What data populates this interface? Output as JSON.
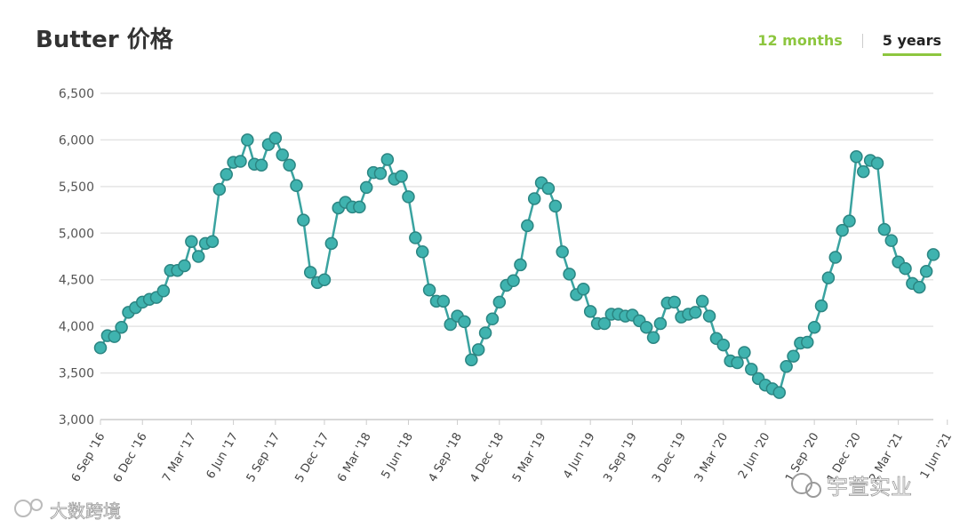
{
  "header": {
    "title": "Butter 价格",
    "tabs": [
      {
        "label": "12 months",
        "active": false
      },
      {
        "label": "5 years",
        "active": true
      }
    ]
  },
  "colors": {
    "line": "#3aa3a0",
    "marker_fill": "#3fb3af",
    "marker_stroke": "#2b8582",
    "accent": "#8dc63f"
  },
  "watermarks": {
    "left": "大数跨境",
    "right": "宇萱实业"
  },
  "chart_data": {
    "type": "line",
    "title": "Butter 价格",
    "xlabel": "",
    "ylabel": "",
    "ylim": [
      3000,
      6500
    ],
    "yticks": [
      3000,
      3500,
      4000,
      4500,
      5000,
      5500,
      6000,
      6500
    ],
    "ytick_labels": [
      "3,000",
      "3,500",
      "4,000",
      "4,500",
      "5,000",
      "5,500",
      "6,000",
      "6,500"
    ],
    "xtick_labels": [
      {
        "index": 0,
        "label": "6 Sep '16"
      },
      {
        "index": 6,
        "label": "6 Dec '16"
      },
      {
        "index": 13,
        "label": "7 Mar '17"
      },
      {
        "index": 19,
        "label": "6 Jun '17"
      },
      {
        "index": 25,
        "label": "5 Sep '17"
      },
      {
        "index": 32,
        "label": "5 Dec '17"
      },
      {
        "index": 38,
        "label": "6 Mar '18"
      },
      {
        "index": 44,
        "label": "5 Jun '18"
      },
      {
        "index": 51,
        "label": "4 Sep '18"
      },
      {
        "index": 57,
        "label": "4 Dec '18"
      },
      {
        "index": 63,
        "label": "5 Mar '19"
      },
      {
        "index": 70,
        "label": "4 Jun '19"
      },
      {
        "index": 76,
        "label": "3 Sep '19"
      },
      {
        "index": 83,
        "label": "3 Dec '19"
      },
      {
        "index": 89,
        "label": "3 Mar '20"
      },
      {
        "index": 95,
        "label": "2 Jun '20"
      },
      {
        "index": 102,
        "label": "1 Sep '20"
      },
      {
        "index": 108,
        "label": "1 Dec '20"
      },
      {
        "index": 114,
        "label": "2 Mar '21"
      },
      {
        "index": 121,
        "label": "1 Jun '21"
      }
    ],
    "grid": true,
    "legend": "none",
    "series": [
      {
        "values": [
          3770,
          3900,
          3890,
          3990,
          4150,
          4200,
          4260,
          4290,
          4310,
          4380,
          4600,
          4600,
          4650,
          4910,
          4750,
          4890,
          4910,
          5470,
          5630,
          5760,
          5770,
          6000,
          5740,
          5730,
          5950,
          6020,
          5840,
          5730,
          5510,
          5140,
          4580,
          4470,
          4500,
          4890,
          5270,
          5330,
          5280,
          5280,
          5490,
          5650,
          5640,
          5790,
          5580,
          5610,
          5390,
          4950,
          4800,
          4390,
          4270,
          4270,
          4020,
          4110,
          4050,
          3640,
          3750,
          3930,
          4080,
          4260,
          4440,
          4490,
          4660,
          5080,
          5370,
          5540,
          5480,
          5290,
          4800,
          4560,
          4340,
          4400,
          4160,
          4030,
          4030,
          4130,
          4130,
          4110,
          4120,
          4060,
          3990,
          3880,
          4030,
          4250,
          4260,
          4100,
          4130,
          4150,
          4270,
          4110,
          3870,
          3800,
          3630,
          3610,
          3720,
          3540,
          3440,
          3370,
          3330,
          3290,
          3570,
          3680,
          3820,
          3830,
          3990,
          4220,
          4520,
          4740,
          5030,
          5130,
          5820,
          5660,
          5780,
          5750,
          5040,
          4920,
          4690,
          4620,
          4460,
          4420,
          4590,
          4770
        ]
      }
    ]
  }
}
